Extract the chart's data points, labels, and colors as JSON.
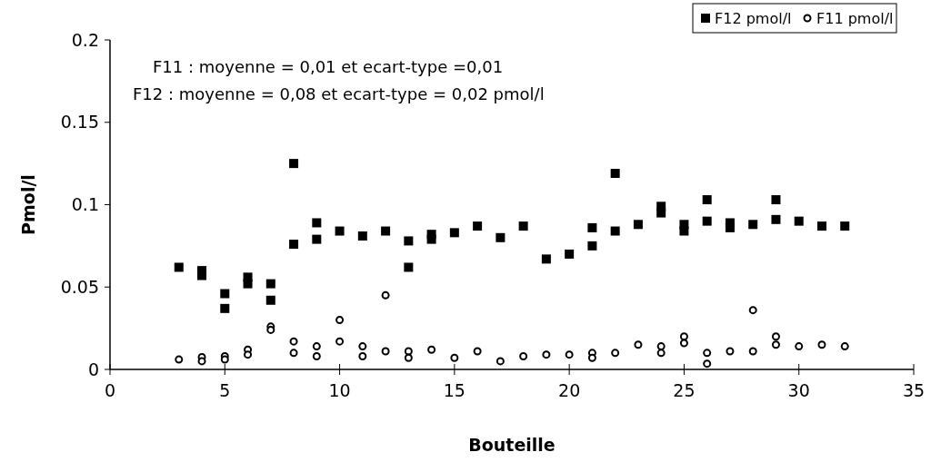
{
  "chart_data": {
    "type": "scatter",
    "xlabel": "Bouteille",
    "ylabel": "Pmol/l",
    "xlim": [
      0,
      35
    ],
    "xticks": [
      0,
      5,
      10,
      15,
      20,
      25,
      30,
      35
    ],
    "ylim": [
      0,
      0.2
    ],
    "yticks": [
      0,
      0.05,
      0.1,
      0.15,
      0.2
    ],
    "grid": false,
    "legend": "top right",
    "annotations": [
      "F11 : moyenne = 0,01 et ecart-type =0,01",
      "F12 : moyenne = 0,08 et ecart-type = 0,02 pmol/l"
    ],
    "series": [
      {
        "name": "F12 pmol/l",
        "color": "#000000",
        "marker": "square",
        "x": [
          3,
          4,
          4,
          5,
          5,
          6,
          6,
          7,
          7,
          8,
          8,
          9,
          9,
          10,
          11,
          12,
          13,
          13,
          14,
          14,
          15,
          16,
          17,
          18,
          19,
          20,
          21,
          21,
          22,
          22,
          23,
          24,
          24,
          25,
          25,
          26,
          26,
          27,
          27,
          28,
          29,
          29,
          30,
          31,
          32
        ],
        "values": [
          0.062,
          0.06,
          0.057,
          0.046,
          0.037,
          0.056,
          0.052,
          0.052,
          0.042,
          0.125,
          0.076,
          0.089,
          0.079,
          0.084,
          0.081,
          0.084,
          0.078,
          0.062,
          0.082,
          0.079,
          0.083,
          0.087,
          0.08,
          0.087,
          0.067,
          0.07,
          0.086,
          0.075,
          0.119,
          0.084,
          0.088,
          0.099,
          0.095,
          0.088,
          0.084,
          0.103,
          0.09,
          0.089,
          0.086,
          0.088,
          0.103,
          0.091,
          0.09,
          0.087,
          0.087
        ]
      },
      {
        "name": "F11 pmol/l",
        "color": "#000000",
        "marker": "circle",
        "x": [
          3,
          4,
          4,
          5,
          5,
          6,
          6,
          7,
          7,
          8,
          8,
          9,
          9,
          10,
          10,
          11,
          11,
          12,
          12,
          13,
          13,
          14,
          15,
          16,
          17,
          18,
          19,
          20,
          21,
          21,
          22,
          23,
          24,
          24,
          25,
          25,
          26,
          26,
          27,
          28,
          28,
          29,
          29,
          30,
          31,
          32
        ],
        "values": [
          0.006,
          0.0075,
          0.005,
          0.008,
          0.006,
          0.012,
          0.009,
          0.026,
          0.024,
          0.017,
          0.01,
          0.014,
          0.008,
          0.03,
          0.017,
          0.014,
          0.008,
          0.045,
          0.011,
          0.011,
          0.007,
          0.012,
          0.007,
          0.011,
          0.005,
          0.008,
          0.009,
          0.009,
          0.01,
          0.007,
          0.01,
          0.015,
          0.014,
          0.01,
          0.02,
          0.016,
          0.01,
          0.0035,
          0.011,
          0.036,
          0.011,
          0.02,
          0.015,
          0.014,
          0.015,
          0.014
        ]
      }
    ]
  }
}
